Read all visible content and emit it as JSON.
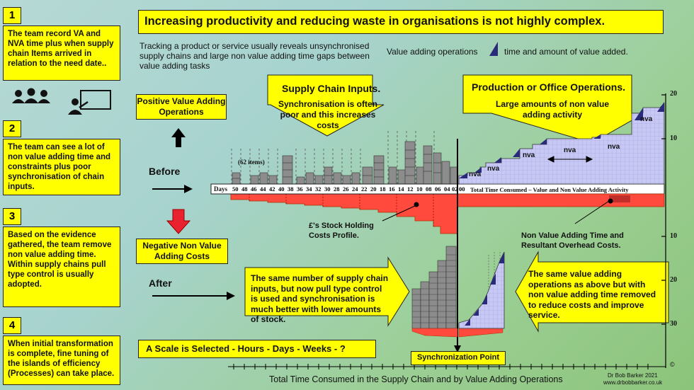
{
  "title": "Increasing productivity and reducing waste in organisations is not highly complex.",
  "intro": "Tracking a product or service usually reveals unsynchronised supply chains and large non value adding time gaps between value adding tasks",
  "legend": {
    "label": "Value adding operations",
    "desc": "time and amount of value added."
  },
  "steps": [
    {
      "num": "1",
      "text": "The team record VA and NVA time plus when supply chain Items arrived in relation to the need date.."
    },
    {
      "num": "2",
      "text": "The team can see a lot of non value adding time and constraints plus poor synchronisation of chain inputs."
    },
    {
      "num": "3",
      "text": "Based on the evidence gathered, the team remove non value adding time. Within supply chains pull type control is usually adopted."
    },
    {
      "num": "4",
      "text": "When initial transformation is complete, fine tuning of the islands of efficiency (Processes) can take place."
    }
  ],
  "positive_box": "Positive Value Adding Operations",
  "negative_box": "Negative Non Value Adding Costs",
  "before_label": "Before",
  "after_label": "After",
  "callouts": {
    "supply_title": "Supply Chain Inputs.",
    "supply_text": "Synchronisation is often poor and this increases costs",
    "production_title": "Production  or Office Operations.",
    "production_text": "Large amounts of non value adding activity",
    "after_left": "The same number of supply chain inputs, but now pull type control is used and synchronisation is much better with lower amounts of stock.",
    "after_right": "The same value adding operations as above but with non value adding time removed to reduce costs and improve service."
  },
  "annotations": {
    "items_count": "(62 items)",
    "days_label": "Days",
    "total_time": "Total  Time Consumed  – Value and  Non  Value  Adding  Activity",
    "stock_costs": "£'s  Stock Holding Costs Profile.",
    "nva_overhead": "Non Value Adding Time and Resultant Overhead Costs.",
    "nva": "nva",
    "scale": "A  Scale  is Selected -  Hours - Days - Weeks - ?",
    "sync_point": "Synchronization Point",
    "bottom_axis": "Total  Time Consumed in the Supply Chain and by Value Adding Operations",
    "author": "Dr Bob Barker 2021",
    "website": "www.drbobbarker.co.uk",
    "copyright": "©"
  },
  "day_ticks": [
    "50",
    "48",
    "46",
    "44",
    "42",
    "40",
    "38",
    "36",
    "34",
    "32",
    "30",
    "28",
    "26",
    "24",
    "22",
    "20",
    "18",
    "16",
    "14",
    "12",
    "10",
    "08",
    "06",
    "04",
    "02",
    "00"
  ],
  "right_scale": [
    "20",
    "10",
    "10",
    "20",
    "30"
  ],
  "colors": {
    "yellow": "#ffff00",
    "red": "#ff4a3d",
    "lavender": "#c8c8f4",
    "navy": "#2a2a7a",
    "bar": "#8c8c8c"
  }
}
